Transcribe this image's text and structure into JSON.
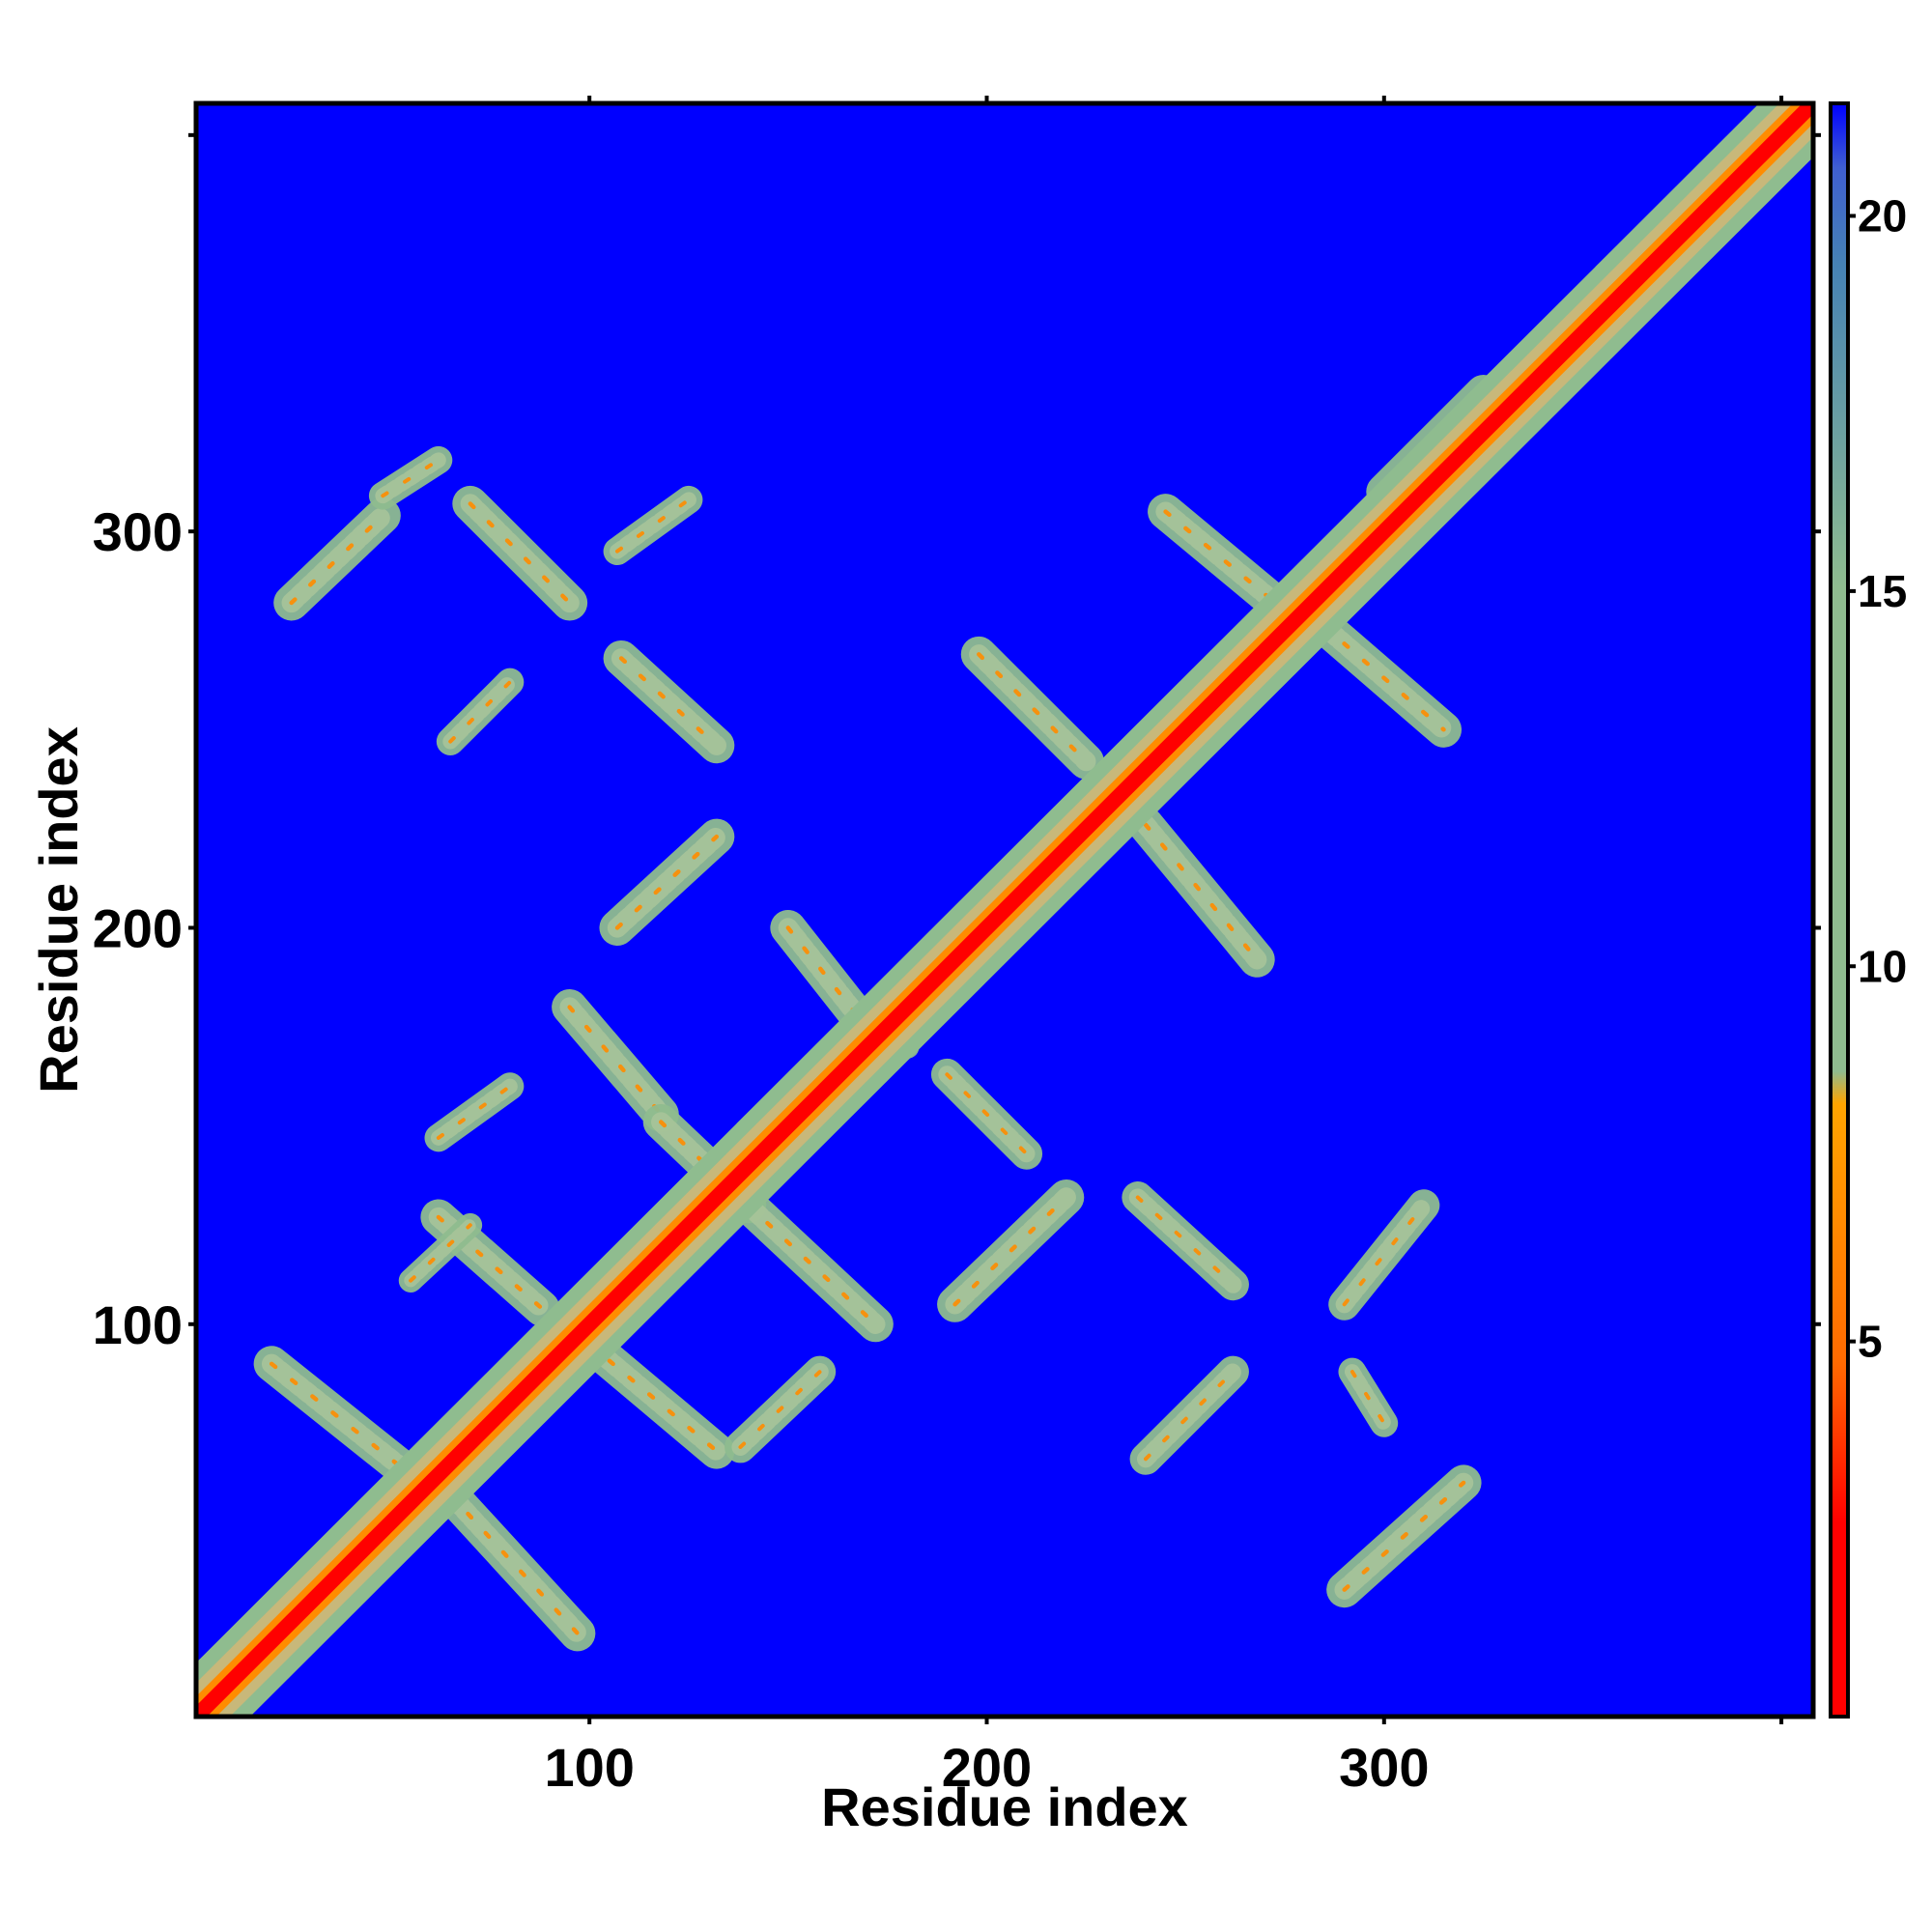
{
  "chart_data": {
    "type": "heatmap",
    "title": "",
    "xlabel": "Residue index",
    "ylabel": "Residue index",
    "xlim": [
      1,
      408
    ],
    "ylim": [
      1,
      408
    ],
    "x_ticks": [
      100,
      200,
      300
    ],
    "y_ticks": [
      100,
      200,
      300
    ],
    "x_tick_labels": [
      "100",
      "200",
      "300"
    ],
    "y_tick_labels": [
      "100",
      "200",
      "300"
    ],
    "colorbar": {
      "range": [
        0,
        21.5
      ],
      "ticks": [
        5,
        10,
        15,
        20
      ],
      "tick_labels": [
        "5",
        "10",
        "15",
        "20"
      ],
      "colors": [
        "#ff0000",
        "#ff6a00",
        "#ffa500",
        "#8fbc8f",
        "#4682b4",
        "#0000ff"
      ]
    },
    "background_value": 21.5,
    "background_color": "#0000ff",
    "diagonal": {
      "description_value_at_diagonal": 1,
      "band_half_width": 6
    },
    "contact_features": [
      {
        "c1": [
          20,
          90
        ],
        "c2": [
          55,
          62
        ],
        "hw": 4.5
      },
      {
        "c1": [
          65,
          57
        ],
        "c2": [
          97,
          22
        ],
        "hw": 4.5
      },
      {
        "c1": [
          100,
          95
        ],
        "c2": [
          132,
          68
        ],
        "hw": 4.5
      },
      {
        "c1": [
          138,
          69
        ],
        "c2": [
          158,
          88
        ],
        "hw": 4
      },
      {
        "c1": [
          62,
          127
        ],
        "c2": [
          88,
          104
        ],
        "hw": 4.5
      },
      {
        "c1": [
          62,
          147
        ],
        "c2": [
          80,
          160
        ],
        "hw": 3.5
      },
      {
        "c1": [
          55,
          111
        ],
        "c2": [
          70,
          125
        ],
        "hw": 3
      },
      {
        "c1": [
          95,
          180
        ],
        "c2": [
          118,
          153
        ],
        "hw": 4.5
      },
      {
        "c1": [
          118,
          151
        ],
        "c2": [
          140,
          130
        ],
        "hw": 4.5
      },
      {
        "c1": [
          140,
          130
        ],
        "c2": [
          172,
          100
        ],
        "hw": 4.5
      },
      {
        "c1": [
          107,
          200
        ],
        "c2": [
          132,
          223
        ],
        "hw": 4.5
      },
      {
        "c1": [
          108,
          268
        ],
        "c2": [
          132,
          246
        ],
        "hw": 4.5
      },
      {
        "c1": [
          107,
          295
        ],
        "c2": [
          125,
          308
        ],
        "hw": 3.5
      },
      {
        "c1": [
          25,
          282
        ],
        "c2": [
          48,
          304
        ],
        "hw": 4.5
      },
      {
        "c1": [
          48,
          309
        ],
        "c2": [
          62,
          318
        ],
        "hw": 3.5
      },
      {
        "c1": [
          70,
          307
        ],
        "c2": [
          95,
          282
        ],
        "hw": 4.5
      },
      {
        "c1": [
          65,
          247
        ],
        "c2": [
          80,
          262
        ],
        "hw": 3.5
      },
      {
        "c1": [
          150,
          200
        ],
        "c2": [
          172,
          172
        ],
        "hw": 4.5
      },
      {
        "c1": [
          172,
          180
        ],
        "c2": [
          180,
          170
        ],
        "hw": 3
      },
      {
        "c1": [
          190,
          163
        ],
        "c2": [
          210,
          143
        ],
        "hw": 4
      },
      {
        "c1": [
          198,
          269
        ],
        "c2": [
          225,
          242
        ],
        "hw": 4.5
      },
      {
        "c1": [
          240,
          226
        ],
        "c2": [
          268,
          192
        ],
        "hw": 4.5
      },
      {
        "c1": [
          238,
          132
        ],
        "c2": [
          262,
          110
        ],
        "hw": 4
      },
      {
        "c1": [
          192,
          105
        ],
        "c2": [
          220,
          132
        ],
        "hw": 4.5
      },
      {
        "c1": [
          245,
          305
        ],
        "c2": [
          275,
          280
        ],
        "hw": 4.5
      },
      {
        "c1": [
          285,
          276
        ],
        "c2": [
          315,
          250
        ],
        "hw": 4.5
      },
      {
        "c1": [
          240,
          66
        ],
        "c2": [
          262,
          88
        ],
        "hw": 4
      },
      {
        "c1": [
          290,
          33
        ],
        "c2": [
          320,
          60
        ],
        "hw": 4.5
      },
      {
        "c1": [
          292,
          88
        ],
        "c2": [
          300,
          75
        ],
        "hw": 3.5
      },
      {
        "c1": [
          290,
          105
        ],
        "c2": [
          310,
          130
        ],
        "hw": 4
      },
      {
        "c1": [
          300,
          310
        ],
        "c2": [
          325,
          335
        ],
        "hw": 4.5
      },
      {
        "c1": [
          343,
          348
        ],
        "c2": [
          360,
          365
        ],
        "hw": 4
      },
      {
        "c1": [
          370,
          374
        ],
        "c2": [
          390,
          395
        ],
        "hw": 4
      }
    ],
    "grid": false,
    "legend": "colorbar-right"
  }
}
